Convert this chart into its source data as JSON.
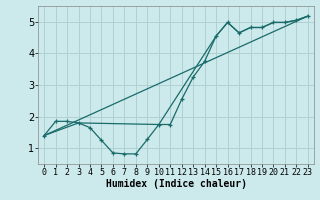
{
  "xlabel": "Humidex (Indice chaleur)",
  "bg_color": "#cce9eb",
  "grid_color": "#b0d0d2",
  "line_color": "#1a6b6b",
  "xlim": [
    -0.5,
    23.5
  ],
  "ylim": [
    0.5,
    5.5
  ],
  "xtick_labels": [
    "0",
    "1",
    "2",
    "3",
    "4",
    "5",
    "6",
    "7",
    "8",
    "9",
    "10",
    "11",
    "12",
    "13",
    "14",
    "15",
    "16",
    "17",
    "18",
    "19",
    "20",
    "21",
    "22",
    "23"
  ],
  "xticks": [
    0,
    1,
    2,
    3,
    4,
    5,
    6,
    7,
    8,
    9,
    10,
    11,
    12,
    13,
    14,
    15,
    16,
    17,
    18,
    19,
    20,
    21,
    22,
    23
  ],
  "yticks": [
    1,
    2,
    3,
    4,
    5
  ],
  "line1_x": [
    0,
    1,
    2,
    3,
    4,
    5,
    6,
    7,
    8,
    9,
    10,
    11,
    12,
    13,
    14,
    15,
    16,
    17,
    18,
    19,
    20,
    21,
    22,
    23
  ],
  "line1_y": [
    1.4,
    1.85,
    1.85,
    1.8,
    1.65,
    1.25,
    0.85,
    0.82,
    0.82,
    1.28,
    1.75,
    1.75,
    2.55,
    3.25,
    3.75,
    4.55,
    4.98,
    4.65,
    4.82,
    4.82,
    4.98,
    4.98,
    5.05,
    5.18
  ],
  "line2_x": [
    0,
    3,
    10,
    15,
    16,
    17,
    18,
    19,
    20,
    21,
    22,
    23
  ],
  "line2_y": [
    1.4,
    1.8,
    1.75,
    4.55,
    4.98,
    4.65,
    4.82,
    4.82,
    4.98,
    4.98,
    5.05,
    5.18
  ],
  "line3_x": [
    0,
    23
  ],
  "line3_y": [
    1.4,
    5.18
  ],
  "xlabel_fontsize": 7,
  "tick_fontsize": 6
}
